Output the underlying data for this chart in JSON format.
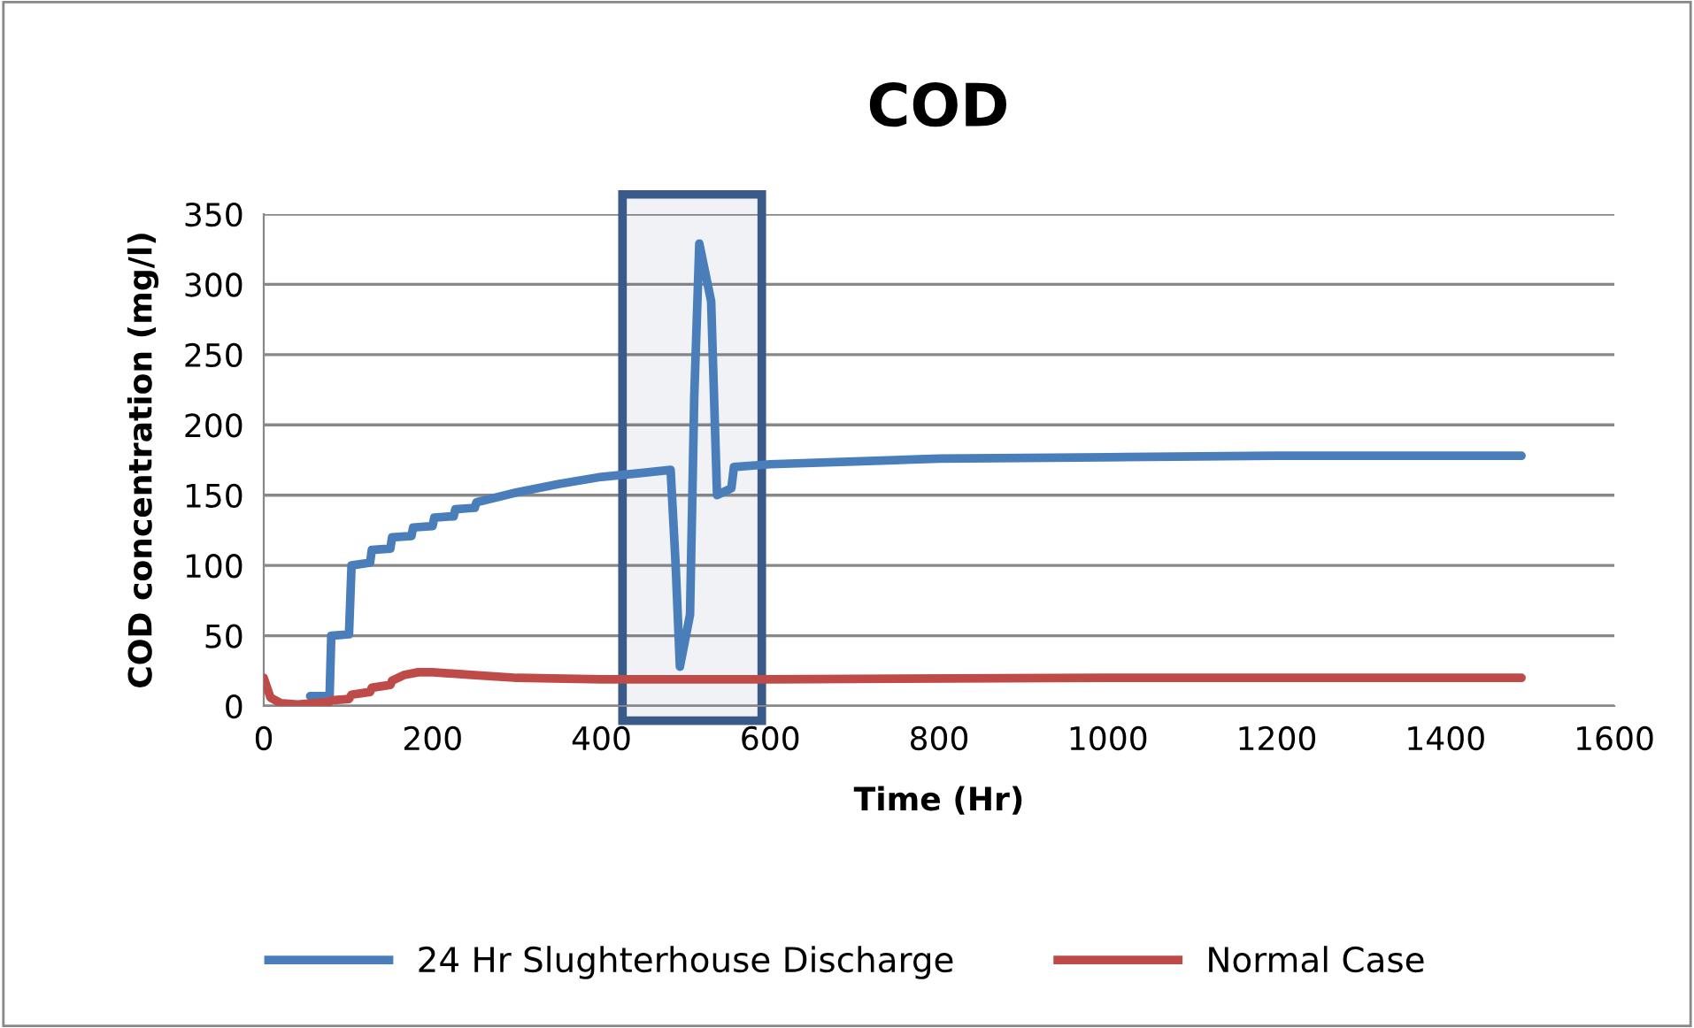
{
  "chart_data": {
    "type": "line",
    "title": "COD",
    "xlabel": "Time (Hr)",
    "ylabel": "COD concentration (mg/l)",
    "xlim": [
      0,
      1600
    ],
    "xticks": [
      0,
      200,
      400,
      600,
      800,
      1000,
      1200,
      1400,
      1600
    ],
    "ylim": [
      0,
      350
    ],
    "yticks": [
      0,
      50,
      100,
      150,
      200,
      250,
      300,
      350
    ],
    "bands": [
      {
        "axis": "x",
        "from": 425,
        "to": 590,
        "color": "#3a5a8a"
      }
    ],
    "grid": "y",
    "legend": "bottom",
    "marker": "none",
    "line_style": "solid",
    "series": [
      {
        "name": "24 Hr Slughterhouse Discharge",
        "color": "#4a7ebb",
        "x": [
          55,
          78,
          80,
          101,
          104,
          126,
          128,
          150,
          152,
          175,
          177,
          200,
          202,
          225,
          227,
          250,
          252,
          300,
          350,
          400,
          450,
          482,
          488,
          493,
          505,
          510,
          516,
          530,
          537,
          554,
          557,
          600,
          700,
          800,
          1000,
          1200,
          1490
        ],
        "values": [
          7,
          7,
          50,
          51,
          100,
          102,
          111,
          112,
          120,
          121,
          127,
          128,
          134,
          135,
          140,
          141,
          145,
          152,
          158,
          163,
          166,
          168,
          100,
          28,
          65,
          220,
          329,
          288,
          150,
          155,
          170,
          172,
          174,
          176,
          177,
          178,
          178
        ]
      },
      {
        "name": "Normal Case",
        "color": "#be4b48",
        "x": [
          0,
          8,
          20,
          40,
          78,
          80,
          101,
          104,
          126,
          128,
          150,
          152,
          166,
          183,
          200,
          250,
          300,
          400,
          600,
          1000,
          1490
        ],
        "values": [
          20,
          6,
          2,
          1,
          3,
          4,
          5,
          8,
          10,
          13,
          15,
          18,
          22,
          24,
          24,
          22,
          20,
          19,
          19,
          20,
          20
        ]
      }
    ]
  }
}
